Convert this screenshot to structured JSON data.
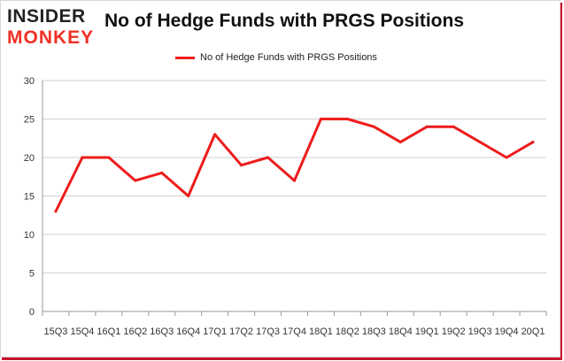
{
  "header": {
    "logo_text_top": "INSIDER",
    "logo_text_bottom": "MONKEY",
    "title": "No of Hedge Funds with PRGS Positions"
  },
  "colors": {
    "series_line": "#ee1c1c",
    "logo_dark": "#222222",
    "logo_red": "#ee3124",
    "grid": "#cfcfcf",
    "axis": "#999999",
    "frame_shadow": "#c8102e"
  },
  "chart_data": {
    "type": "line",
    "title": "No of Hedge Funds with PRGS Positions",
    "xlabel": "",
    "ylabel": "",
    "categories": [
      "15Q3",
      "15Q4",
      "16Q1",
      "16Q2",
      "16Q3",
      "16Q4",
      "17Q1",
      "17Q2",
      "17Q3",
      "17Q4",
      "18Q1",
      "18Q2",
      "18Q3",
      "18Q4",
      "19Q1",
      "19Q2",
      "19Q3",
      "19Q4",
      "20Q1"
    ],
    "series": [
      {
        "name": "No of Hedge Funds with PRGS Positions",
        "values": [
          13,
          20,
          20,
          17,
          18,
          15,
          23,
          19,
          20,
          17,
          25,
          25,
          24,
          22,
          24,
          24,
          22,
          20,
          22
        ]
      }
    ],
    "ylim": [
      0,
      30
    ],
    "yticks": [
      0,
      5,
      10,
      15,
      20,
      25,
      30
    ],
    "grid": true,
    "legend_position": "top-center"
  }
}
